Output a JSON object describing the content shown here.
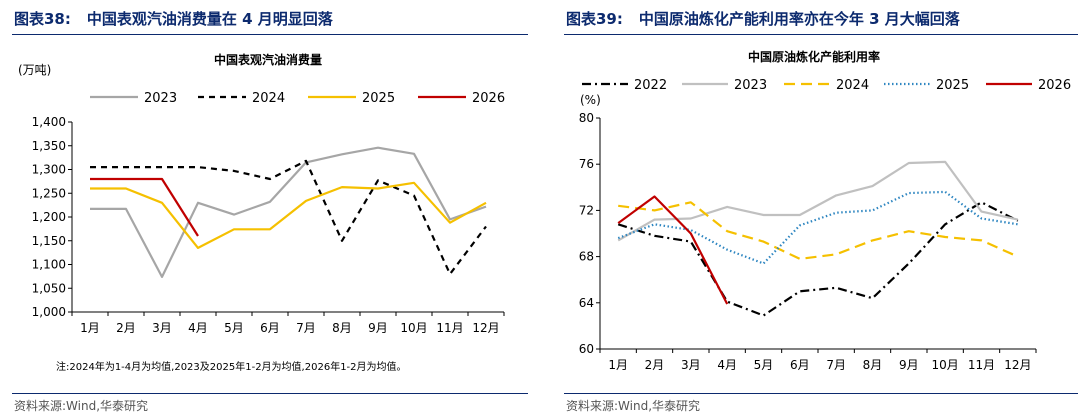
{
  "charts": [
    {
      "header_num": "图表38:",
      "header_title": "中国表观汽油消费量在 4 月明显回落",
      "source": "资料来源:Wind,华泰研究",
      "note": "注:2024年为1-4月为均值,2023及2025年1-2月为均值,2026年1-2月为均值。"
    },
    {
      "header_num": "图表39:",
      "header_title": "中国原油炼化产能利用率亦在今年 3 月大幅回落",
      "source": "资料来源:Wind,华泰研究"
    }
  ],
  "chart_data": [
    {
      "type": "line",
      "title": "中国表观汽油消费量",
      "unit_label": "(万吨)",
      "categories": [
        "1月",
        "2月",
        "3月",
        "4月",
        "5月",
        "6月",
        "7月",
        "8月",
        "9月",
        "10月",
        "11月",
        "12月"
      ],
      "ylim": [
        1000,
        1400
      ],
      "yticks": [
        "1,000",
        "1,050",
        "1,100",
        "1,150",
        "1,200",
        "1,250",
        "1,300",
        "1,350",
        "1,400"
      ],
      "grid": false,
      "legend_position": "top",
      "series": [
        {
          "name": "2023",
          "color": "#a6a6a6",
          "dash": "solid",
          "values": [
            1217,
            1217,
            1074,
            1230,
            1205,
            1232,
            1315,
            1332,
            1346,
            1333,
            1195,
            1222
          ]
        },
        {
          "name": "2024",
          "color": "#000000",
          "dash": "dashed",
          "values": [
            1305,
            1305,
            1305,
            1305,
            1297,
            1280,
            1318,
            1150,
            1277,
            1245,
            1080,
            1180
          ]
        },
        {
          "name": "2025",
          "color": "#f5c000",
          "dash": "solid",
          "values": [
            1260,
            1260,
            1230,
            1135,
            1174,
            1174,
            1234,
            1263,
            1260,
            1272,
            1188,
            1230
          ]
        },
        {
          "name": "2026",
          "color": "#c00000",
          "dash": "solid",
          "values": [
            1280,
            1280,
            1280,
            1160,
            null,
            null,
            null,
            null,
            null,
            null,
            null,
            null
          ]
        }
      ]
    },
    {
      "type": "line",
      "title": "中国原油炼化产能利用率",
      "unit_label": "(%)",
      "categories": [
        "1月",
        "2月",
        "3月",
        "4月",
        "5月",
        "6月",
        "7月",
        "8月",
        "9月",
        "10月",
        "11月",
        "12月"
      ],
      "ylim": [
        60,
        80
      ],
      "yticks": [
        "60",
        "64",
        "68",
        "72",
        "76",
        "80"
      ],
      "grid": false,
      "legend_position": "top",
      "series": [
        {
          "name": "2022",
          "color": "#000000",
          "dash": "dashdot",
          "values": [
            70.8,
            69.8,
            69.3,
            64.1,
            62.9,
            65.0,
            65.3,
            64.4,
            67.4,
            70.8,
            72.7,
            71.1
          ]
        },
        {
          "name": "2023",
          "color": "#c0c0c0",
          "dash": "solid",
          "values": [
            69.4,
            71.2,
            71.3,
            72.3,
            71.6,
            71.6,
            73.3,
            74.1,
            76.1,
            76.2,
            71.9,
            71.2
          ]
        },
        {
          "name": "2024",
          "color": "#f5c000",
          "dash": "longdash",
          "values": [
            72.4,
            72.0,
            72.7,
            70.2,
            69.3,
            67.8,
            68.2,
            69.4,
            70.2,
            69.7,
            69.4,
            68.0
          ]
        },
        {
          "name": "2025",
          "color": "#2e86c1",
          "dash": "dotted",
          "values": [
            69.6,
            70.8,
            70.3,
            68.6,
            67.4,
            70.7,
            71.8,
            72.0,
            73.5,
            73.6,
            71.3,
            70.8
          ]
        },
        {
          "name": "2026",
          "color": "#c00000",
          "dash": "solid",
          "values": [
            70.9,
            73.2,
            70.0,
            63.9,
            null,
            null,
            null,
            null,
            null,
            null,
            null,
            null
          ]
        }
      ]
    }
  ]
}
